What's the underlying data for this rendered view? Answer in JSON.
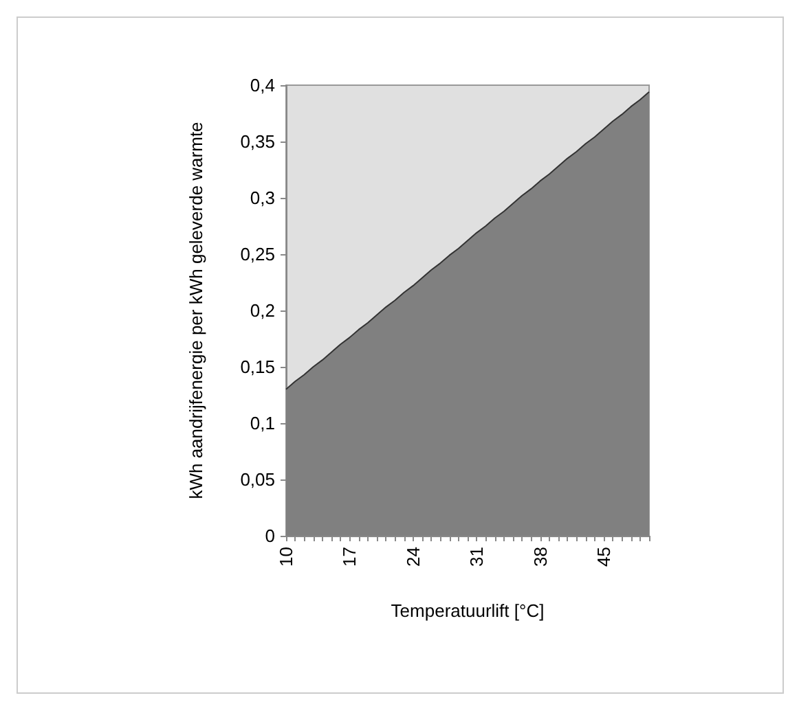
{
  "chart_data": {
    "type": "area",
    "xlabel": "Temperatuurlift [°C]",
    "ylabel": "kWh aandrijfenergie per kWh geleverde warmte",
    "categories": [
      "10",
      null,
      null,
      null,
      null,
      null,
      null,
      "17",
      null,
      null,
      null,
      null,
      null,
      null,
      "24",
      null,
      null,
      null,
      null,
      null,
      null,
      "31",
      null,
      null,
      null,
      null,
      null,
      null,
      "38",
      null,
      null,
      null,
      null,
      null,
      null,
      "45",
      null,
      null,
      null,
      null,
      null
    ],
    "values": [
      0.13,
      0.137,
      0.143,
      0.15,
      0.156,
      0.163,
      0.17,
      0.176,
      0.183,
      0.189,
      0.196,
      0.203,
      0.209,
      0.216,
      0.222,
      0.229,
      0.236,
      0.242,
      0.249,
      0.255,
      0.262,
      0.269,
      0.275,
      0.282,
      0.288,
      0.295,
      0.302,
      0.308,
      0.315,
      0.321,
      0.328,
      0.335,
      0.341,
      0.348,
      0.354,
      0.361,
      0.368,
      0.374,
      0.381,
      0.387,
      0.394
    ],
    "color": "#808080",
    "ylim": [
      0,
      0.4
    ],
    "yticks": [
      0,
      {
        "value": 0.05,
        "label": "0,05"
      },
      {
        "value": 0.1,
        "label": "0,1"
      },
      {
        "value": 0.15,
        "label": "0,15"
      },
      {
        "value": 0.2,
        "label": "0,2"
      },
      {
        "value": 0.25,
        "label": "0,25"
      },
      {
        "value": 0.3,
        "label": "0,3"
      },
      {
        "value": 0.35,
        "label": "0,35"
      },
      {
        "value": 0.4,
        "label": "0,4"
      }
    ],
    "grid": false
  }
}
